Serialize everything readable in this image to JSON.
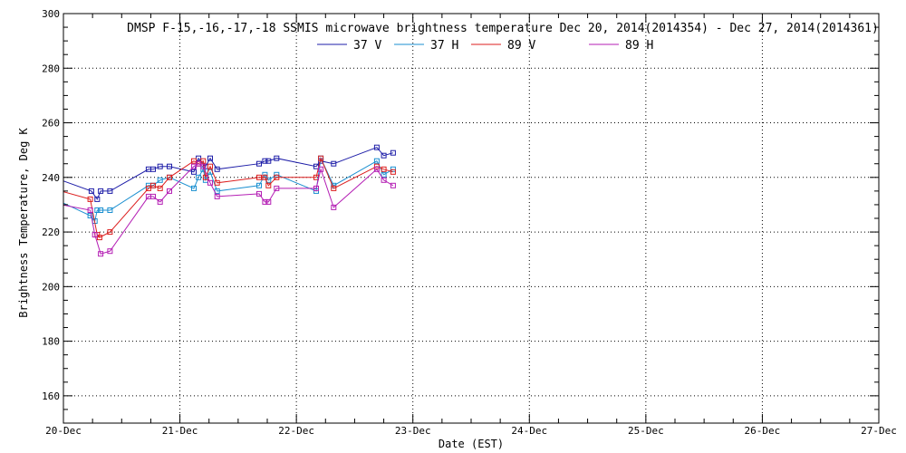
{
  "chart_data": {
    "type": "line",
    "title": "DMSP F-15,-16,-17,-18 SSMIS microwave brightness temperature Dec 20, 2014(2014354) - Dec 27, 2014(2014361)",
    "xlabel": "Date (EST)",
    "ylabel": "Brightness Temperature, Deg K",
    "xlim": [
      0,
      7
    ],
    "ylim": [
      150,
      300
    ],
    "x_tick_values": [
      0,
      1,
      2,
      3,
      4,
      5,
      6,
      7
    ],
    "x_tick_labels": [
      "20-Dec",
      "21-Dec",
      "22-Dec",
      "23-Dec",
      "24-Dec",
      "25-Dec",
      "26-Dec",
      "27-Dec"
    ],
    "y_ticks": [
      160,
      180,
      200,
      220,
      240,
      260,
      280,
      300
    ],
    "grid": true,
    "legend_position": "top-center",
    "series": [
      {
        "name": "37 V",
        "color": "#1e1ea8",
        "x": [
          -0.02,
          0.24,
          0.29,
          0.32,
          0.4,
          0.73,
          0.77,
          0.83,
          0.91,
          1.12,
          1.16,
          1.22,
          1.26,
          1.32,
          1.68,
          1.73,
          1.76,
          1.83,
          2.17,
          2.21,
          2.32,
          2.69,
          2.75,
          2.83
        ],
        "y": [
          239,
          235,
          232,
          235,
          235,
          243,
          243,
          244,
          244,
          242,
          247,
          244,
          247,
          243,
          245,
          246,
          246,
          247,
          244,
          246,
          245,
          251,
          248,
          249
        ]
      },
      {
        "name": "37 H",
        "color": "#1a8fd0",
        "x": [
          -0.02,
          0.23,
          0.27,
          0.29,
          0.32,
          0.4,
          0.73,
          0.77,
          0.83,
          0.91,
          1.12,
          1.16,
          1.2,
          1.22,
          1.26,
          1.32,
          1.68,
          1.73,
          1.76,
          1.83,
          2.17,
          2.21,
          2.32,
          2.69,
          2.75,
          2.83
        ],
        "y": [
          231,
          226,
          224,
          228,
          228,
          228,
          237,
          237,
          239,
          240,
          236,
          240,
          243,
          239,
          242,
          235,
          237,
          241,
          239,
          241,
          235,
          247,
          237,
          246,
          241,
          243
        ]
      },
      {
        "name": "89 V",
        "color": "#dc1e1e",
        "x": [
          -0.02,
          0.23,
          0.29,
          0.31,
          0.4,
          0.73,
          0.77,
          0.83,
          0.91,
          1.12,
          1.16,
          1.2,
          1.22,
          1.26,
          1.32,
          1.68,
          1.73,
          1.76,
          1.83,
          2.17,
          2.21,
          2.32,
          2.69,
          2.75,
          2.83
        ],
        "y": [
          235,
          232,
          219,
          218,
          220,
          236,
          237,
          236,
          240,
          246,
          245,
          246,
          240,
          244,
          238,
          240,
          240,
          237,
          240,
          240,
          247,
          236,
          244,
          243,
          242
        ]
      },
      {
        "name": "89 H",
        "color": "#b41eb4",
        "x": [
          -0.02,
          0.23,
          0.27,
          0.32,
          0.4,
          0.73,
          0.77,
          0.83,
          0.91,
          1.12,
          1.16,
          1.2,
          1.26,
          1.32,
          1.68,
          1.73,
          1.76,
          1.83,
          2.17,
          2.21,
          2.32,
          2.69,
          2.75,
          2.83
        ],
        "y": [
          230,
          228,
          219,
          212,
          213,
          233,
          233,
          231,
          235,
          244,
          245,
          244,
          238,
          233,
          234,
          231,
          231,
          236,
          236,
          243,
          229,
          243,
          239,
          237
        ]
      }
    ]
  }
}
